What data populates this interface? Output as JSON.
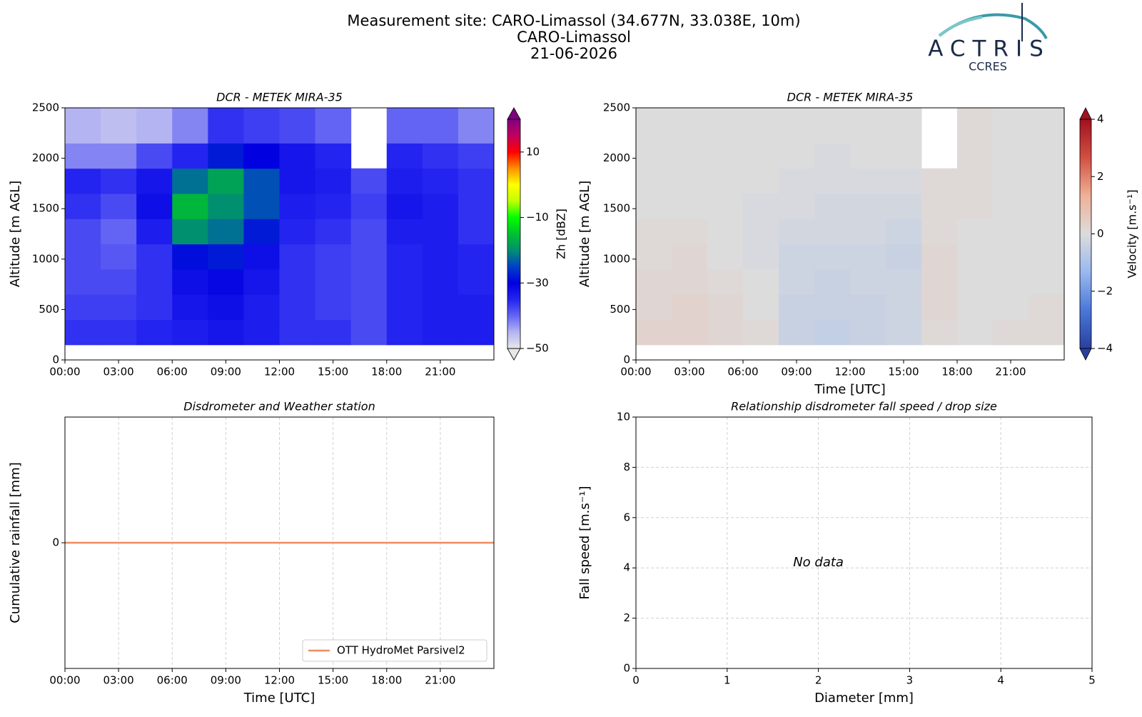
{
  "figure": {
    "title_lines": [
      "Measurement site: CARO-Limassol (34.677N, 33.038E, 10m)",
      "CARO-Limassol",
      "21-06-2026"
    ]
  },
  "logo": {
    "name": "ACTRIS",
    "subtitle": "CCRES"
  },
  "chart_data": [
    {
      "type": "heatmap",
      "title": "DCR - METEK MIRA-35",
      "ylabel": "Altitude [m AGL]",
      "xlim": [
        0,
        24
      ],
      "ylim": [
        0,
        2500
      ],
      "xticks": [
        {
          "value": 0,
          "label": "00:00"
        },
        {
          "value": 3,
          "label": "03:00"
        },
        {
          "value": 6,
          "label": "06:00"
        },
        {
          "value": 9,
          "label": "09:00"
        },
        {
          "value": 12,
          "label": "12:00"
        },
        {
          "value": 15,
          "label": "15:00"
        },
        {
          "value": 18,
          "label": "18:00"
        },
        {
          "value": 21,
          "label": "21:00"
        }
      ],
      "yticks": [
        0,
        500,
        1000,
        1500,
        2000,
        2500
      ],
      "grid": false,
      "x_edges": [
        0,
        2,
        4,
        6,
        8,
        10,
        12,
        14,
        16,
        18,
        20,
        22,
        24
      ],
      "y_edges": [
        150,
        400,
        650,
        900,
        1150,
        1400,
        1650,
        1900,
        2150,
        2500
      ],
      "z": [
        [
          -36,
          -36,
          -35,
          -34,
          -33,
          -34,
          -36,
          -36,
          -38,
          -35,
          -34,
          -34
        ],
        [
          -37,
          -37,
          -36,
          -33,
          -32,
          -34,
          -36,
          -37,
          -38,
          -35,
          -34,
          -34
        ],
        [
          -38,
          -38,
          -36,
          -32,
          -31,
          -33,
          -36,
          -37,
          -38,
          -35,
          -34,
          -35
        ],
        [
          -38,
          -39,
          -36,
          -29,
          -28,
          -32,
          -36,
          -37,
          -38,
          -35,
          -34,
          -35
        ],
        [
          -38,
          -40,
          -34,
          -20,
          -22,
          -28,
          -35,
          -36,
          -38,
          -34,
          -34,
          -36
        ],
        [
          -36,
          -38,
          -32,
          -16,
          -20,
          -24,
          -34,
          -35,
          -37,
          -33,
          -34,
          -36
        ],
        [
          -35,
          -36,
          -33,
          -22,
          -18,
          -24,
          -33,
          -34,
          -38,
          -34,
          -35,
          -36
        ],
        [
          -42,
          -42,
          -38,
          -35,
          -28,
          -30,
          -33,
          -35,
          null,
          -35,
          -36,
          -37
        ],
        [
          -45,
          -46,
          -45,
          -42,
          -36,
          -37,
          -38,
          -40,
          null,
          -40,
          -40,
          -42
        ]
      ],
      "colorbar": {
        "label": "Zh [dBZ]",
        "clim": [
          -50,
          20
        ],
        "ticks": [
          {
            "value": -50,
            "label": "−50"
          },
          {
            "value": -30,
            "label": "−30"
          },
          {
            "value": -10,
            "label": "−10"
          },
          10
        ],
        "colors": [
          "#e8e8e8",
          "#b4b4f2",
          "#6464f4",
          "#2424f0",
          "#0000e0",
          "#0040c8",
          "#009070",
          "#00c030",
          "#00ff00",
          "#c0ff00",
          "#ffff00",
          "#ff9000",
          "#ff0000",
          "#c00060",
          "#800080"
        ]
      }
    },
    {
      "type": "heatmap",
      "title": "DCR - METEK MIRA-35",
      "ylabel": "Altitude [m AGL]",
      "xlabel": "Time [UTC]",
      "xlim": [
        0,
        24
      ],
      "ylim": [
        0,
        2500
      ],
      "xticks": [
        {
          "value": 0,
          "label": "00:00"
        },
        {
          "value": 3,
          "label": "03:00"
        },
        {
          "value": 6,
          "label": "06:00"
        },
        {
          "value": 9,
          "label": "09:00"
        },
        {
          "value": 12,
          "label": "12:00"
        },
        {
          "value": 15,
          "label": "15:00"
        },
        {
          "value": 18,
          "label": "18:00"
        },
        {
          "value": 21,
          "label": "21:00"
        }
      ],
      "yticks": [
        0,
        500,
        1000,
        1500,
        2000,
        2500
      ],
      "grid": false,
      "x_edges": [
        0,
        2,
        4,
        6,
        8,
        10,
        12,
        14,
        16,
        18,
        20,
        22,
        24
      ],
      "y_edges": [
        150,
        400,
        650,
        900,
        1150,
        1400,
        1650,
        1900,
        2150,
        2500
      ],
      "z": [
        [
          0.3,
          0.3,
          0.2,
          0.1,
          -0.4,
          -0.5,
          -0.4,
          -0.3,
          0.1,
          0.0,
          0.1,
          0.1
        ],
        [
          0.2,
          0.3,
          0.2,
          0.0,
          -0.4,
          -0.4,
          -0.4,
          -0.3,
          0.2,
          0.0,
          0.0,
          0.1
        ],
        [
          0.2,
          0.2,
          0.1,
          0.0,
          -0.3,
          -0.4,
          -0.3,
          -0.3,
          0.2,
          0.0,
          0.0,
          0.0
        ],
        [
          0.1,
          0.2,
          0.0,
          -0.1,
          -0.3,
          -0.3,
          -0.3,
          -0.4,
          0.2,
          0.0,
          0.0,
          0.0
        ],
        [
          0.1,
          0.1,
          0.0,
          -0.1,
          -0.2,
          -0.2,
          -0.2,
          -0.3,
          0.1,
          0.0,
          0.0,
          0.0
        ],
        [
          0.0,
          0.0,
          0.0,
          -0.1,
          -0.1,
          -0.2,
          -0.2,
          -0.2,
          0.1,
          0.1,
          0.0,
          0.0
        ],
        [
          0.0,
          0.0,
          0.0,
          0.0,
          -0.1,
          -0.1,
          -0.1,
          -0.1,
          0.1,
          0.1,
          0.0,
          0.0
        ],
        [
          0.0,
          0.0,
          0.0,
          0.0,
          0.0,
          -0.1,
          0.0,
          0.0,
          null,
          0.1,
          0.0,
          0.0
        ],
        [
          0.0,
          0.0,
          0.0,
          0.0,
          0.0,
          0.0,
          0.0,
          0.0,
          null,
          0.1,
          0.0,
          0.0
        ]
      ],
      "colorbar": {
        "label": "Velocity [m.s⁻¹]",
        "clim": [
          -4,
          4
        ],
        "ticks": [
          {
            "value": -4,
            "label": "−4"
          },
          {
            "value": -2,
            "label": "−2"
          },
          0,
          2,
          4
        ],
        "colors": [
          "#2a3f9e",
          "#4a78d8",
          "#9ab8f0",
          "#dcdcdc",
          "#f0b098",
          "#d05040",
          "#a01020"
        ]
      }
    },
    {
      "type": "line",
      "title": "Disdrometer and Weather station",
      "ylabel": "Cumulative rainfall [mm]",
      "xlabel": "Time [UTC]",
      "xlim": [
        0,
        24
      ],
      "ylim": [
        -1,
        1
      ],
      "xticks": [
        {
          "value": 0,
          "label": "00:00"
        },
        {
          "value": 3,
          "label": "03:00"
        },
        {
          "value": 6,
          "label": "06:00"
        },
        {
          "value": 9,
          "label": "09:00"
        },
        {
          "value": 12,
          "label": "12:00"
        },
        {
          "value": 15,
          "label": "15:00"
        },
        {
          "value": 18,
          "label": "18:00"
        },
        {
          "value": 21,
          "label": "21:00"
        }
      ],
      "yticks": [
        0
      ],
      "grid": true,
      "legend": "lower right",
      "x": [
        0,
        24
      ],
      "series": [
        {
          "name": "OTT HydroMet Parsivel2",
          "color": "#ef8a62",
          "values": [
            0,
            0
          ]
        }
      ]
    },
    {
      "type": "scatter",
      "title": "Relationship disdrometer fall speed / drop size",
      "ylabel": "Fall speed [m.s⁻¹]",
      "xlabel": "Diameter [mm]",
      "xlim": [
        0,
        5
      ],
      "ylim": [
        0,
        10
      ],
      "xticks": [
        0,
        1,
        2,
        3,
        4,
        5
      ],
      "yticks": [
        0,
        2,
        4,
        6,
        8,
        10
      ],
      "grid": true,
      "x": [],
      "values": [],
      "annotation": "No data"
    }
  ]
}
